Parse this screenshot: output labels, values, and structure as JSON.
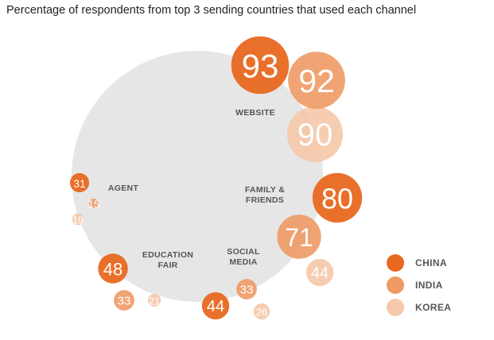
{
  "chart_data": {
    "type": "bubble",
    "title": "Percentage of respondents from top 3 sending countries that used each channel",
    "series": [
      {
        "name": "CHINA",
        "color": "#e8681f"
      },
      {
        "name": "INDIA",
        "color": "#ee9a65"
      },
      {
        "name": "KOREA",
        "color": "#f5c8a9"
      }
    ],
    "channels": [
      {
        "label_lines": [
          "WEBSITE"
        ],
        "values": [
          93,
          92,
          90
        ]
      },
      {
        "label_lines": [
          "FAMILY &",
          "FRIENDS"
        ],
        "values": [
          80,
          71,
          44
        ]
      },
      {
        "label_lines": [
          "SOCIAL",
          "MEDIA"
        ],
        "values": [
          44,
          33,
          26
        ]
      },
      {
        "label_lines": [
          "EDUCATION",
          "FAIR"
        ],
        "values": [
          48,
          33,
          21
        ]
      },
      {
        "label_lines": [
          "AGENT"
        ],
        "values": [
          31,
          15,
          19
        ]
      }
    ],
    "legend_position": "bottom-right",
    "background_color": "#e6e6e7"
  }
}
